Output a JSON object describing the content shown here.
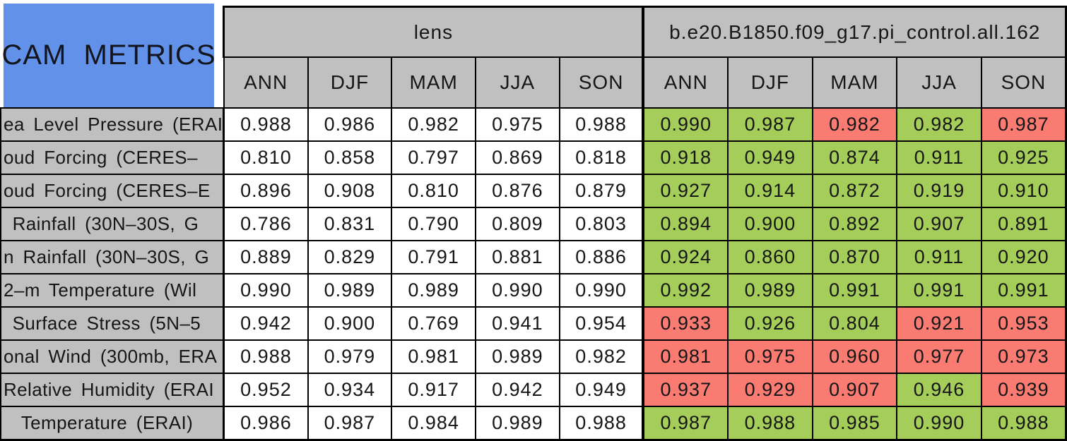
{
  "title": "CAM  METRICS",
  "colors": {
    "blue": "#6191E8",
    "gray": "#C0C0C0",
    "green": "#A4CD5A",
    "red": "#F97B72",
    "border": "#000000",
    "background": "#FFFFFF"
  },
  "chart_data": {
    "type": "table",
    "title": "CAM METRICS",
    "column_groups": [
      {
        "label": "lens"
      },
      {
        "label": "b.e20.B1850.f09_g17.pi_control.all.162"
      }
    ],
    "season_columns": [
      "ANN",
      "DJF",
      "MAM",
      "JJA",
      "SON"
    ],
    "cell_color_legend": {
      "g": "green (better/within range)",
      "r": "red (worse/out of range)"
    },
    "rows": [
      {
        "label": "ea Level Pressure (ERAI",
        "lens": [
          "0.988",
          "0.986",
          "0.982",
          "0.975",
          "0.988"
        ],
        "control": [
          "0.990",
          "0.987",
          "0.982",
          "0.982",
          "0.987"
        ],
        "control_flags": [
          "g",
          "g",
          "r",
          "g",
          "r"
        ]
      },
      {
        "label": "oud Forcing (CERES–",
        "lens": [
          "0.810",
          "0.858",
          "0.797",
          "0.869",
          "0.818"
        ],
        "control": [
          "0.918",
          "0.949",
          "0.874",
          "0.911",
          "0.925"
        ],
        "control_flags": [
          "g",
          "g",
          "g",
          "g",
          "g"
        ]
      },
      {
        "label": "oud Forcing (CERES–E",
        "lens": [
          "0.896",
          "0.908",
          "0.810",
          "0.876",
          "0.879"
        ],
        "control": [
          "0.927",
          "0.914",
          "0.872",
          "0.919",
          "0.910"
        ],
        "control_flags": [
          "g",
          "g",
          "g",
          "g",
          "g"
        ]
      },
      {
        "label": " Rainfall (30N–30S, G",
        "lens": [
          "0.786",
          "0.831",
          "0.790",
          "0.809",
          "0.803"
        ],
        "control": [
          "0.894",
          "0.900",
          "0.892",
          "0.907",
          "0.891"
        ],
        "control_flags": [
          "g",
          "g",
          "g",
          "g",
          "g"
        ]
      },
      {
        "label": "n Rainfall (30N–30S, G",
        "lens": [
          "0.889",
          "0.829",
          "0.791",
          "0.881",
          "0.886"
        ],
        "control": [
          "0.924",
          "0.860",
          "0.870",
          "0.911",
          "0.920"
        ],
        "control_flags": [
          "g",
          "g",
          "g",
          "g",
          "g"
        ]
      },
      {
        "label": "2–m Temperature (Wil",
        "lens": [
          "0.990",
          "0.989",
          "0.989",
          "0.990",
          "0.990"
        ],
        "control": [
          "0.992",
          "0.989",
          "0.991",
          "0.991",
          "0.991"
        ],
        "control_flags": [
          "g",
          "g",
          "g",
          "g",
          "g"
        ]
      },
      {
        "label": " Surface Stress (5N–5",
        "lens": [
          "0.942",
          "0.900",
          "0.769",
          "0.941",
          "0.954"
        ],
        "control": [
          "0.933",
          "0.926",
          "0.804",
          "0.921",
          "0.953"
        ],
        "control_flags": [
          "r",
          "g",
          "g",
          "r",
          "r"
        ]
      },
      {
        "label": "onal Wind (300mb, ERA",
        "lens": [
          "0.988",
          "0.979",
          "0.981",
          "0.989",
          "0.982"
        ],
        "control": [
          "0.981",
          "0.975",
          "0.960",
          "0.977",
          "0.973"
        ],
        "control_flags": [
          "r",
          "r",
          "r",
          "r",
          "r"
        ]
      },
      {
        "label": "Relative Humidity (ERAI",
        "lens": [
          "0.952",
          "0.934",
          "0.917",
          "0.942",
          "0.949"
        ],
        "control": [
          "0.937",
          "0.929",
          "0.907",
          "0.946",
          "0.939"
        ],
        "control_flags": [
          "r",
          "r",
          "r",
          "g",
          "r"
        ]
      },
      {
        "label": "  Temperature (ERAI)",
        "lens": [
          "0.986",
          "0.987",
          "0.984",
          "0.989",
          "0.988"
        ],
        "control": [
          "0.987",
          "0.988",
          "0.985",
          "0.990",
          "0.988"
        ],
        "control_flags": [
          "g",
          "g",
          "g",
          "g",
          "g"
        ]
      }
    ]
  }
}
